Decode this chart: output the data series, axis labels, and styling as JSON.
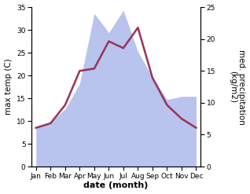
{
  "months": [
    "Jan",
    "Feb",
    "Mar",
    "Apr",
    "May",
    "Jun",
    "Jul",
    "Aug",
    "Sep",
    "Oct",
    "Nov",
    "Dec"
  ],
  "x": [
    0,
    1,
    2,
    3,
    4,
    5,
    6,
    7,
    8,
    9,
    10,
    11
  ],
  "temp": [
    8.5,
    9.5,
    13.5,
    21.0,
    21.5,
    27.5,
    26.0,
    30.5,
    19.5,
    13.5,
    10.5,
    8.5
  ],
  "precip": [
    6.0,
    7.0,
    9.0,
    13.0,
    24.0,
    21.0,
    24.5,
    18.0,
    14.0,
    10.5,
    11.0,
    11.0
  ],
  "temp_color": "#993355",
  "precip_fill_color": "#b8c4ee",
  "precip_fill_alpha": 1.0,
  "ylabel_left": "max temp (C)",
  "ylabel_right": "med. precipitation\n(kg/m2)",
  "xlabel": "date (month)",
  "ylim_left": [
    0,
    35
  ],
  "ylim_right": [
    0,
    25
  ],
  "yticks_left": [
    0,
    5,
    10,
    15,
    20,
    25,
    30,
    35
  ],
  "yticks_right": [
    0,
    5,
    10,
    15,
    20,
    25
  ],
  "bg_color": "#ffffff",
  "label_fontsize": 7.5,
  "tick_fontsize": 6.5,
  "xlabel_fontsize": 8,
  "linewidth": 1.8
}
